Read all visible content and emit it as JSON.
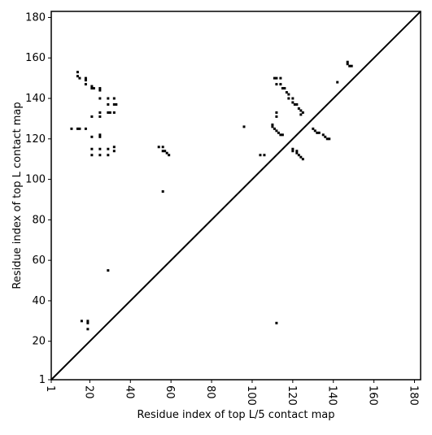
{
  "chart_data": {
    "type": "scatter",
    "xlabel": "Residue index of top L/5 contact map",
    "ylabel": "Residue index of top L contact map",
    "xlim": [
      1,
      183
    ],
    "ylim": [
      1,
      183
    ],
    "xticks": [
      1,
      20,
      40,
      60,
      80,
      100,
      120,
      140,
      160,
      180
    ],
    "yticks": [
      1,
      20,
      40,
      60,
      80,
      100,
      120,
      140,
      160,
      180
    ],
    "color": "#000000",
    "diagonal": true,
    "x": [
      14,
      14,
      15,
      18,
      18,
      18,
      21,
      21,
      22,
      25,
      25,
      11,
      14,
      15,
      18,
      21,
      25,
      25,
      25,
      29,
      29,
      32,
      32,
      33,
      29,
      30,
      32,
      21,
      25,
      25,
      21,
      21,
      25,
      25,
      29,
      29,
      32,
      32,
      54,
      56,
      56,
      57,
      58,
      59,
      56,
      29,
      16,
      19,
      19,
      19,
      112,
      96,
      104,
      106,
      111,
      112,
      114,
      112,
      114,
      115,
      116,
      117,
      118,
      118,
      120,
      120,
      121,
      122,
      123,
      124,
      124,
      125,
      110,
      110,
      111,
      112,
      113,
      114,
      115,
      112,
      112,
      120,
      120,
      122,
      122,
      123,
      124,
      125,
      130,
      131,
      132,
      133,
      135,
      136,
      137,
      138,
      142,
      147,
      147,
      148,
      149
    ],
    "y": [
      153,
      151,
      150,
      150,
      149,
      147,
      146,
      145,
      145,
      145,
      144,
      125,
      125,
      125,
      125,
      131,
      133,
      131,
      140,
      140,
      137,
      140,
      137,
      137,
      133,
      133,
      133,
      121,
      122,
      121,
      115,
      112,
      115,
      112,
      115,
      112,
      116,
      114,
      116,
      116,
      114,
      114,
      113,
      112,
      94,
      55,
      30,
      30,
      29,
      26,
      29,
      126,
      112,
      112,
      150,
      150,
      150,
      147,
      147,
      145,
      145,
      143,
      142,
      140,
      140,
      138,
      137,
      137,
      135,
      134,
      132,
      133,
      127,
      126,
      125,
      124,
      123,
      122,
      122,
      133,
      131,
      115,
      114,
      114,
      113,
      112,
      111,
      110,
      125,
      124,
      123,
      123,
      122,
      121,
      120,
      120,
      148,
      158,
      157,
      156,
      156
    ]
  }
}
